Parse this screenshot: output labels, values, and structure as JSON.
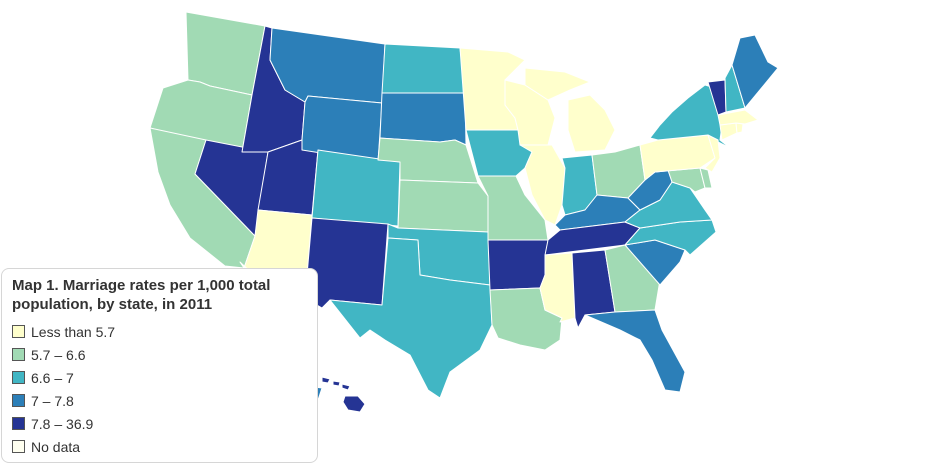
{
  "map": {
    "region": "United States",
    "classes": [
      {
        "label": "Less than 5.7",
        "color": "#ffffcc"
      },
      {
        "label": "5.7 – 6.6",
        "color": "#a1dab4"
      },
      {
        "label": "6.6 – 7",
        "color": "#41b6c4"
      },
      {
        "label": "7 – 7.8",
        "color": "#2c7fb8"
      },
      {
        "label": "7.8 – 36.9",
        "color": "#253494"
      },
      {
        "label": "No data",
        "color": "#fffff0"
      }
    ],
    "states": {
      "WA": 1,
      "OR": 1,
      "CA": 1,
      "NV": 4,
      "ID": 4,
      "UT": 4,
      "AZ": 0,
      "MT": 3,
      "WY": 3,
      "CO": 2,
      "NM": 4,
      "ND": 2,
      "SD": 3,
      "NE": 1,
      "KS": 1,
      "OK": 2,
      "TX": 2,
      "MN": 0,
      "IA": 2,
      "MO": 1,
      "AR": 4,
      "LA": 1,
      "WI": 0,
      "IL": 0,
      "MI": 0,
      "IN": 2,
      "OH": 1,
      "KY": 3,
      "TN": 4,
      "MS": 0,
      "AL": 4,
      "GA": 1,
      "FL": 3,
      "SC": 3,
      "NC": 2,
      "VA": 2,
      "WV": 3,
      "MD": 1,
      "DE": 1,
      "PA": 0,
      "NY": 2,
      "NJ": 0,
      "CT": 0,
      "RI": 0,
      "MA": 0,
      "VT": 4,
      "NH": 2,
      "ME": 3,
      "AK": 3,
      "HI": 4
    }
  },
  "legend": {
    "title": "Map 1. Marriage rates per 1,000 total\npopulation, by state, in 2011"
  }
}
